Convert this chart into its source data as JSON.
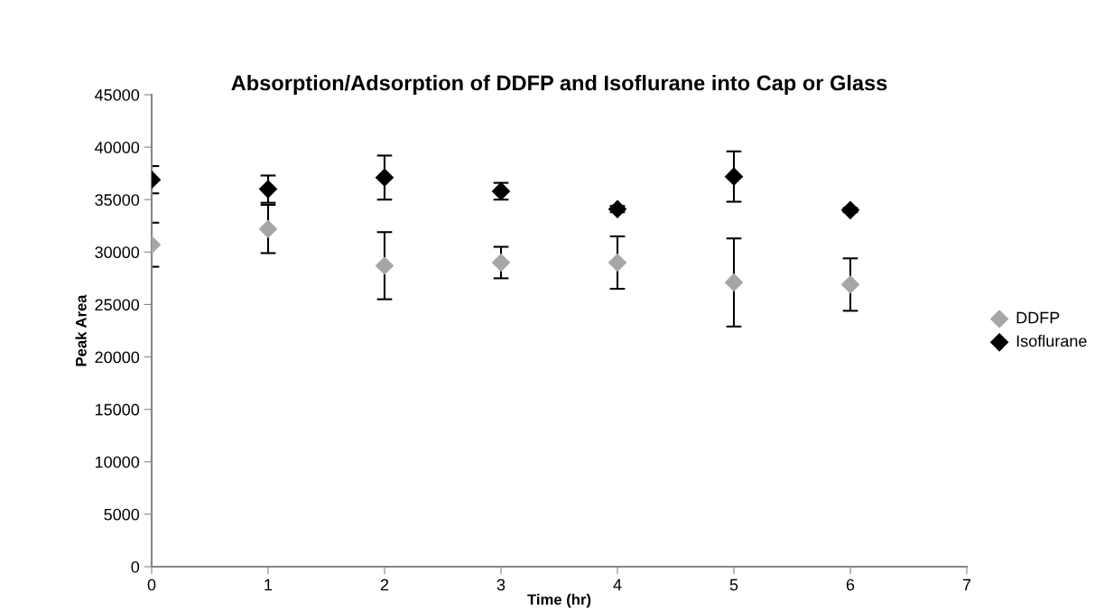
{
  "chart_data": {
    "type": "scatter",
    "title": "Absorption/Adsorption of DDFP and Isoflurane into Cap or Glass",
    "xlabel": "Time (hr)",
    "ylabel": "Peak Area",
    "x": [
      0,
      1,
      2,
      3,
      4,
      5,
      6
    ],
    "series": [
      {
        "name": "DDFP",
        "color": "#a6a6a6",
        "values": [
          30700,
          32200,
          28700,
          29000,
          29000,
          27100,
          26900
        ],
        "errors": [
          2100,
          2300,
          3200,
          1500,
          2500,
          4200,
          2500
        ]
      },
      {
        "name": "Isoflurane",
        "color": "#000000",
        "values": [
          36900,
          36000,
          37100,
          35800,
          34100,
          37200,
          34000
        ],
        "errors": [
          1300,
          1300,
          2100,
          800,
          300,
          2400,
          200
        ]
      }
    ],
    "xlim": [
      0,
      7
    ],
    "xticks": [
      0,
      1,
      2,
      3,
      4,
      5,
      6,
      7
    ],
    "ylim": [
      0,
      45000
    ],
    "yticks": [
      0,
      5000,
      10000,
      15000,
      20000,
      25000,
      30000,
      35000,
      40000,
      45000
    ],
    "marker": "diamond",
    "legend": "right",
    "grid": false
  }
}
